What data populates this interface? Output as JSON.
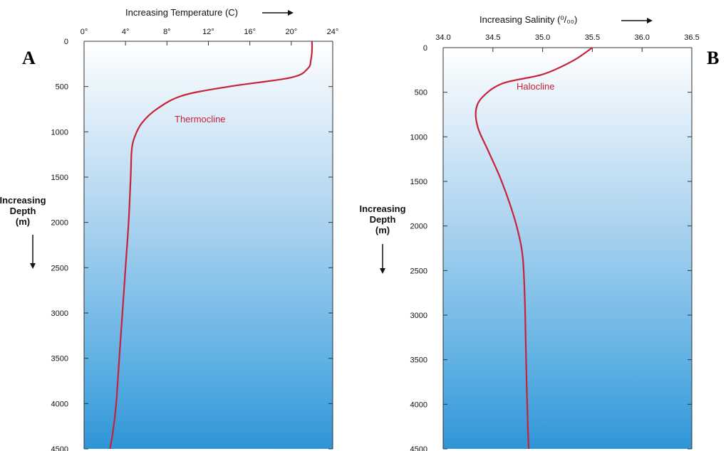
{
  "colors": {
    "curve": "#c8213a",
    "annotation": "#c8213a",
    "gradient_top": "#ffffff",
    "gradient_bottom": "#2f95d6"
  },
  "chart_data": [
    {
      "type": "line",
      "panel_label": "A",
      "xlabel": "Increasing Temperature (C)",
      "ylabel": [
        "Increasing",
        "Depth",
        "(m)"
      ],
      "x_tick_labels": [
        "0°",
        "4°",
        "8°",
        "12°",
        "16°",
        "20°",
        "24°"
      ],
      "y_tick_labels": [
        "0",
        "500",
        "1000",
        "1500",
        "2000",
        "2500",
        "3000",
        "3500",
        "4000",
        "4500"
      ],
      "xlim": [
        0,
        24
      ],
      "ylim": [
        0,
        4500
      ],
      "y_inverted": true,
      "annotation": "Thermocline",
      "series": [
        {
          "x": [
            22.0,
            22.0,
            21.9,
            21.6,
            20.0,
            14.0,
            9.5,
            7.0,
            5.6,
            4.9,
            4.6,
            4.5,
            4.3,
            4.0,
            3.7,
            3.4,
            3.1,
            2.8,
            2.5
          ],
          "y": [
            0,
            100,
            200,
            300,
            400,
            500,
            600,
            750,
            900,
            1050,
            1200,
            1500,
            2000,
            2500,
            3000,
            3500,
            4000,
            4300,
            4500
          ]
        }
      ]
    },
    {
      "type": "line",
      "panel_label": "B",
      "xlabel": "Increasing Salinity (⁰/₀₀)",
      "ylabel": [
        "Increasing",
        "Depth",
        "(m)"
      ],
      "x_tick_labels": [
        "34.0",
        "34.5",
        "35.0",
        "35.5",
        "36.0",
        "36.5"
      ],
      "y_tick_labels": [
        "0",
        "500",
        "1000",
        "1500",
        "2000",
        "2500",
        "3000",
        "3500",
        "4000",
        "4500"
      ],
      "xlim": [
        34.0,
        36.5
      ],
      "ylim": [
        0,
        4500
      ],
      "y_inverted": true,
      "annotation": "Halocline",
      "series": [
        {
          "x": [
            35.5,
            35.3,
            35.0,
            34.6,
            34.4,
            34.33,
            34.35,
            34.45,
            34.57,
            34.67,
            34.75,
            34.8,
            34.82,
            34.83,
            34.84,
            34.85,
            34.86
          ],
          "y": [
            0,
            150,
            300,
            400,
            550,
            700,
            900,
            1150,
            1450,
            1750,
            2050,
            2350,
            2800,
            3300,
            3800,
            4200,
            4500
          ]
        }
      ]
    }
  ]
}
